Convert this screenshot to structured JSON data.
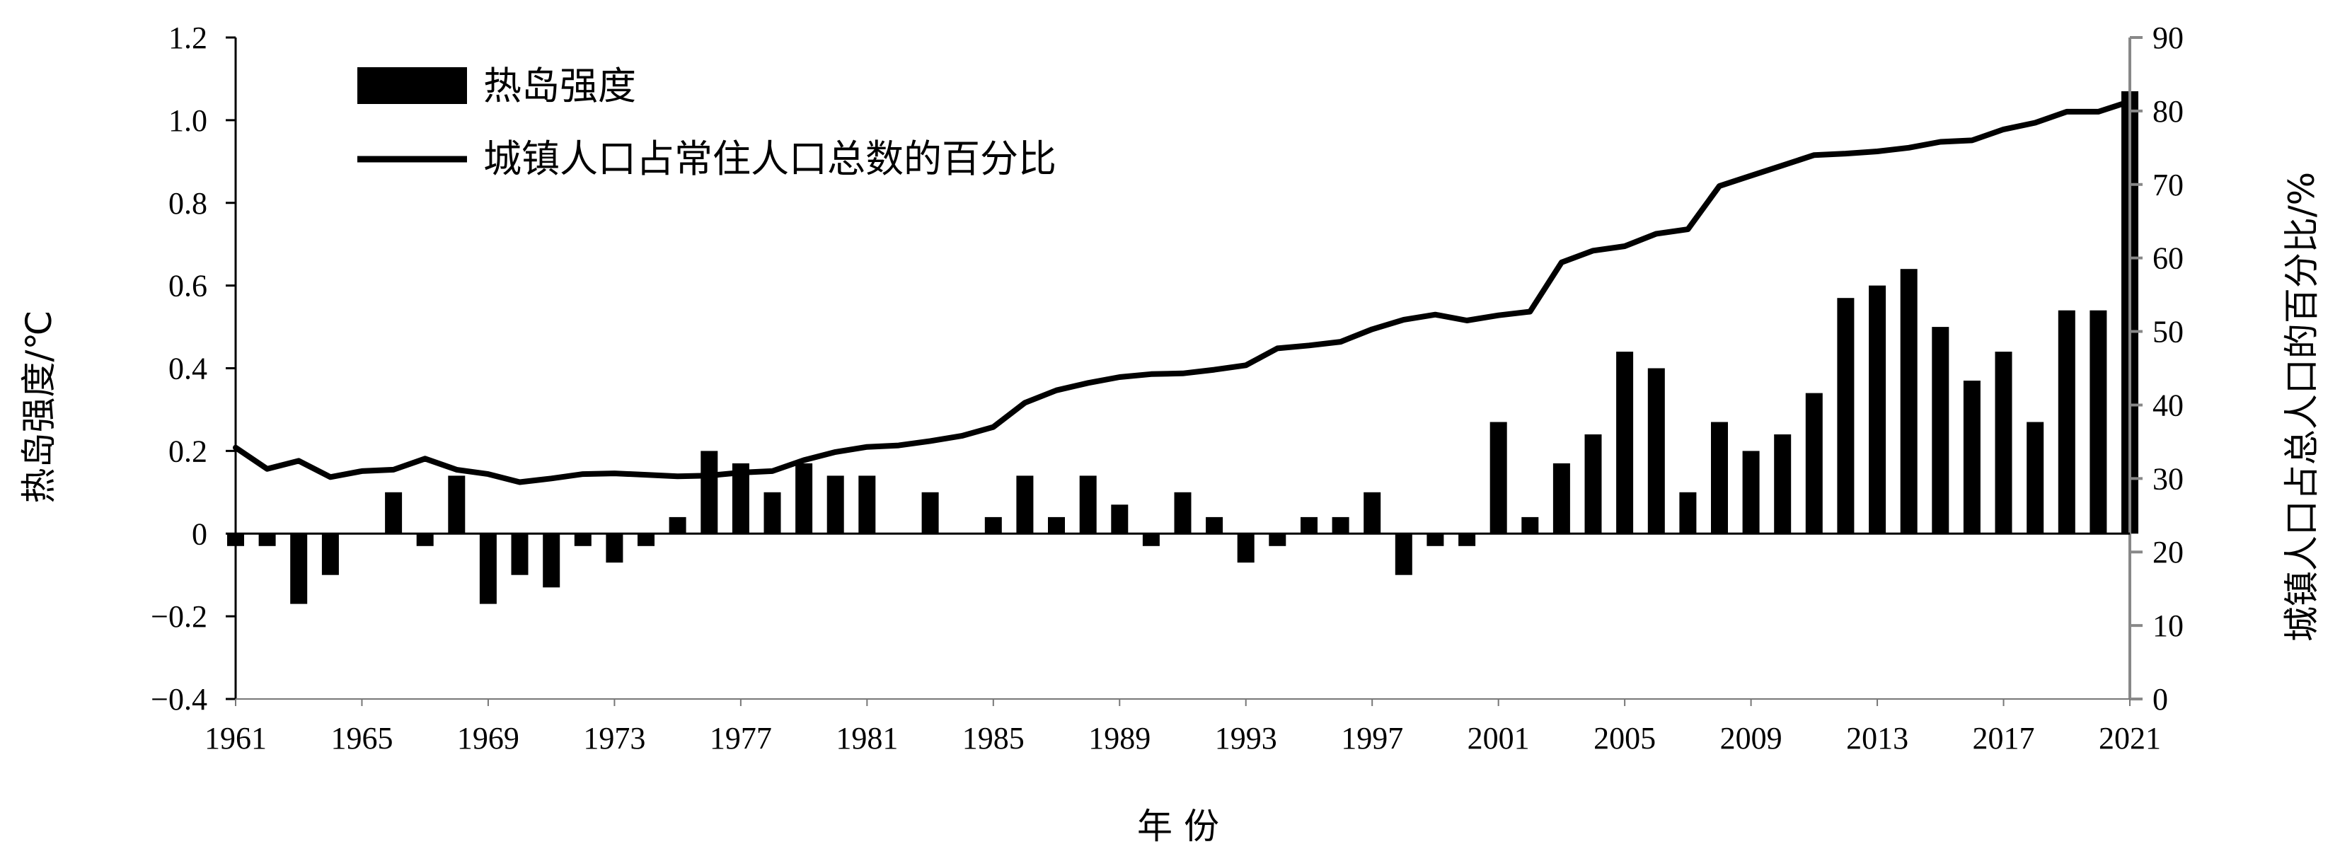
{
  "chart_data": {
    "type": "bar",
    "title": "",
    "xlabel": "年 份",
    "ylabel": "热岛强度/℃",
    "y2label": "城镇人口占总人口的百分比/%",
    "ylim": [
      -0.4,
      1.2
    ],
    "yticks": [
      "1.2",
      "1.0",
      "0.8",
      "0.6",
      "0.4",
      "0.2",
      "0",
      "−0.2",
      "−0.4"
    ],
    "y2lim": [
      0,
      90
    ],
    "y2ticks": [
      "90",
      "80",
      "70",
      "60",
      "50",
      "40",
      "30",
      "20",
      "10",
      "0"
    ],
    "xticks": [
      "1961",
      "1965",
      "1969",
      "1973",
      "1977",
      "1981",
      "1985",
      "1989",
      "1993",
      "1997",
      "2001",
      "2005",
      "2009",
      "2013",
      "2017",
      "2021"
    ],
    "legend": {
      "position": "top-left",
      "bar_label": "热岛强度",
      "line_label": "城镇人口占常住人口总数的百分比"
    },
    "x": [
      1961,
      1962,
      1963,
      1964,
      1965,
      1966,
      1967,
      1968,
      1969,
      1970,
      1971,
      1972,
      1973,
      1974,
      1975,
      1976,
      1977,
      1978,
      1979,
      1980,
      1981,
      1982,
      1983,
      1984,
      1985,
      1986,
      1987,
      1988,
      1989,
      1990,
      1991,
      1992,
      1993,
      1994,
      1995,
      1996,
      1997,
      1998,
      1999,
      2000,
      2001,
      2002,
      2003,
      2004,
      2005,
      2006,
      2007,
      2008,
      2009,
      2010,
      2011,
      2012,
      2013,
      2014,
      2015,
      2016,
      2017,
      2018,
      2019,
      2020,
      2021
    ],
    "series": [
      {
        "name": "热岛强度",
        "type": "bar",
        "axis": "left",
        "values": [
          -0.03,
          -0.03,
          -0.17,
          -0.1,
          0,
          0.1,
          -0.03,
          0.14,
          -0.17,
          -0.1,
          -0.13,
          -0.03,
          -0.07,
          -0.03,
          0.04,
          0.2,
          0.17,
          0.1,
          0.17,
          0.14,
          0.14,
          0,
          0.1,
          0,
          0.04,
          0.14,
          0.04,
          0.14,
          0.07,
          -0.03,
          0.1,
          0.04,
          -0.07,
          -0.03,
          0.04,
          0.04,
          0.1,
          -0.1,
          -0.03,
          -0.03,
          0.27,
          0.04,
          0.17,
          0.24,
          0.44,
          0.4,
          0.1,
          0.27,
          0.2,
          0.24,
          0.34,
          0.57,
          0.6,
          0.64,
          0.5,
          0.37,
          0.44,
          0.27,
          0.54,
          0.54,
          1.07
        ]
      },
      {
        "name": "城镇人口占常住人口总数的百分比",
        "type": "line",
        "axis": "right",
        "values": [
          34.2,
          31.3,
          32.4,
          30.2,
          31.0,
          31.2,
          32.7,
          31.2,
          30.6,
          29.5,
          30.0,
          30.6,
          30.7,
          30.5,
          30.3,
          30.4,
          30.8,
          31.0,
          32.5,
          33.6,
          34.3,
          34.5,
          35.1,
          35.8,
          37.0,
          40.3,
          42.0,
          43.0,
          43.8,
          44.2,
          44.3,
          44.8,
          45.4,
          47.7,
          48.1,
          48.6,
          50.3,
          51.6,
          52.3,
          51.5,
          52.2,
          52.7,
          59.4,
          61.0,
          61.6,
          63.3,
          63.9,
          69.8,
          71.2,
          72.6,
          74.0,
          74.2,
          74.5,
          75.0,
          75.8,
          76.0,
          77.5,
          78.4,
          79.9,
          79.9,
          81.3
        ]
      }
    ]
  }
}
